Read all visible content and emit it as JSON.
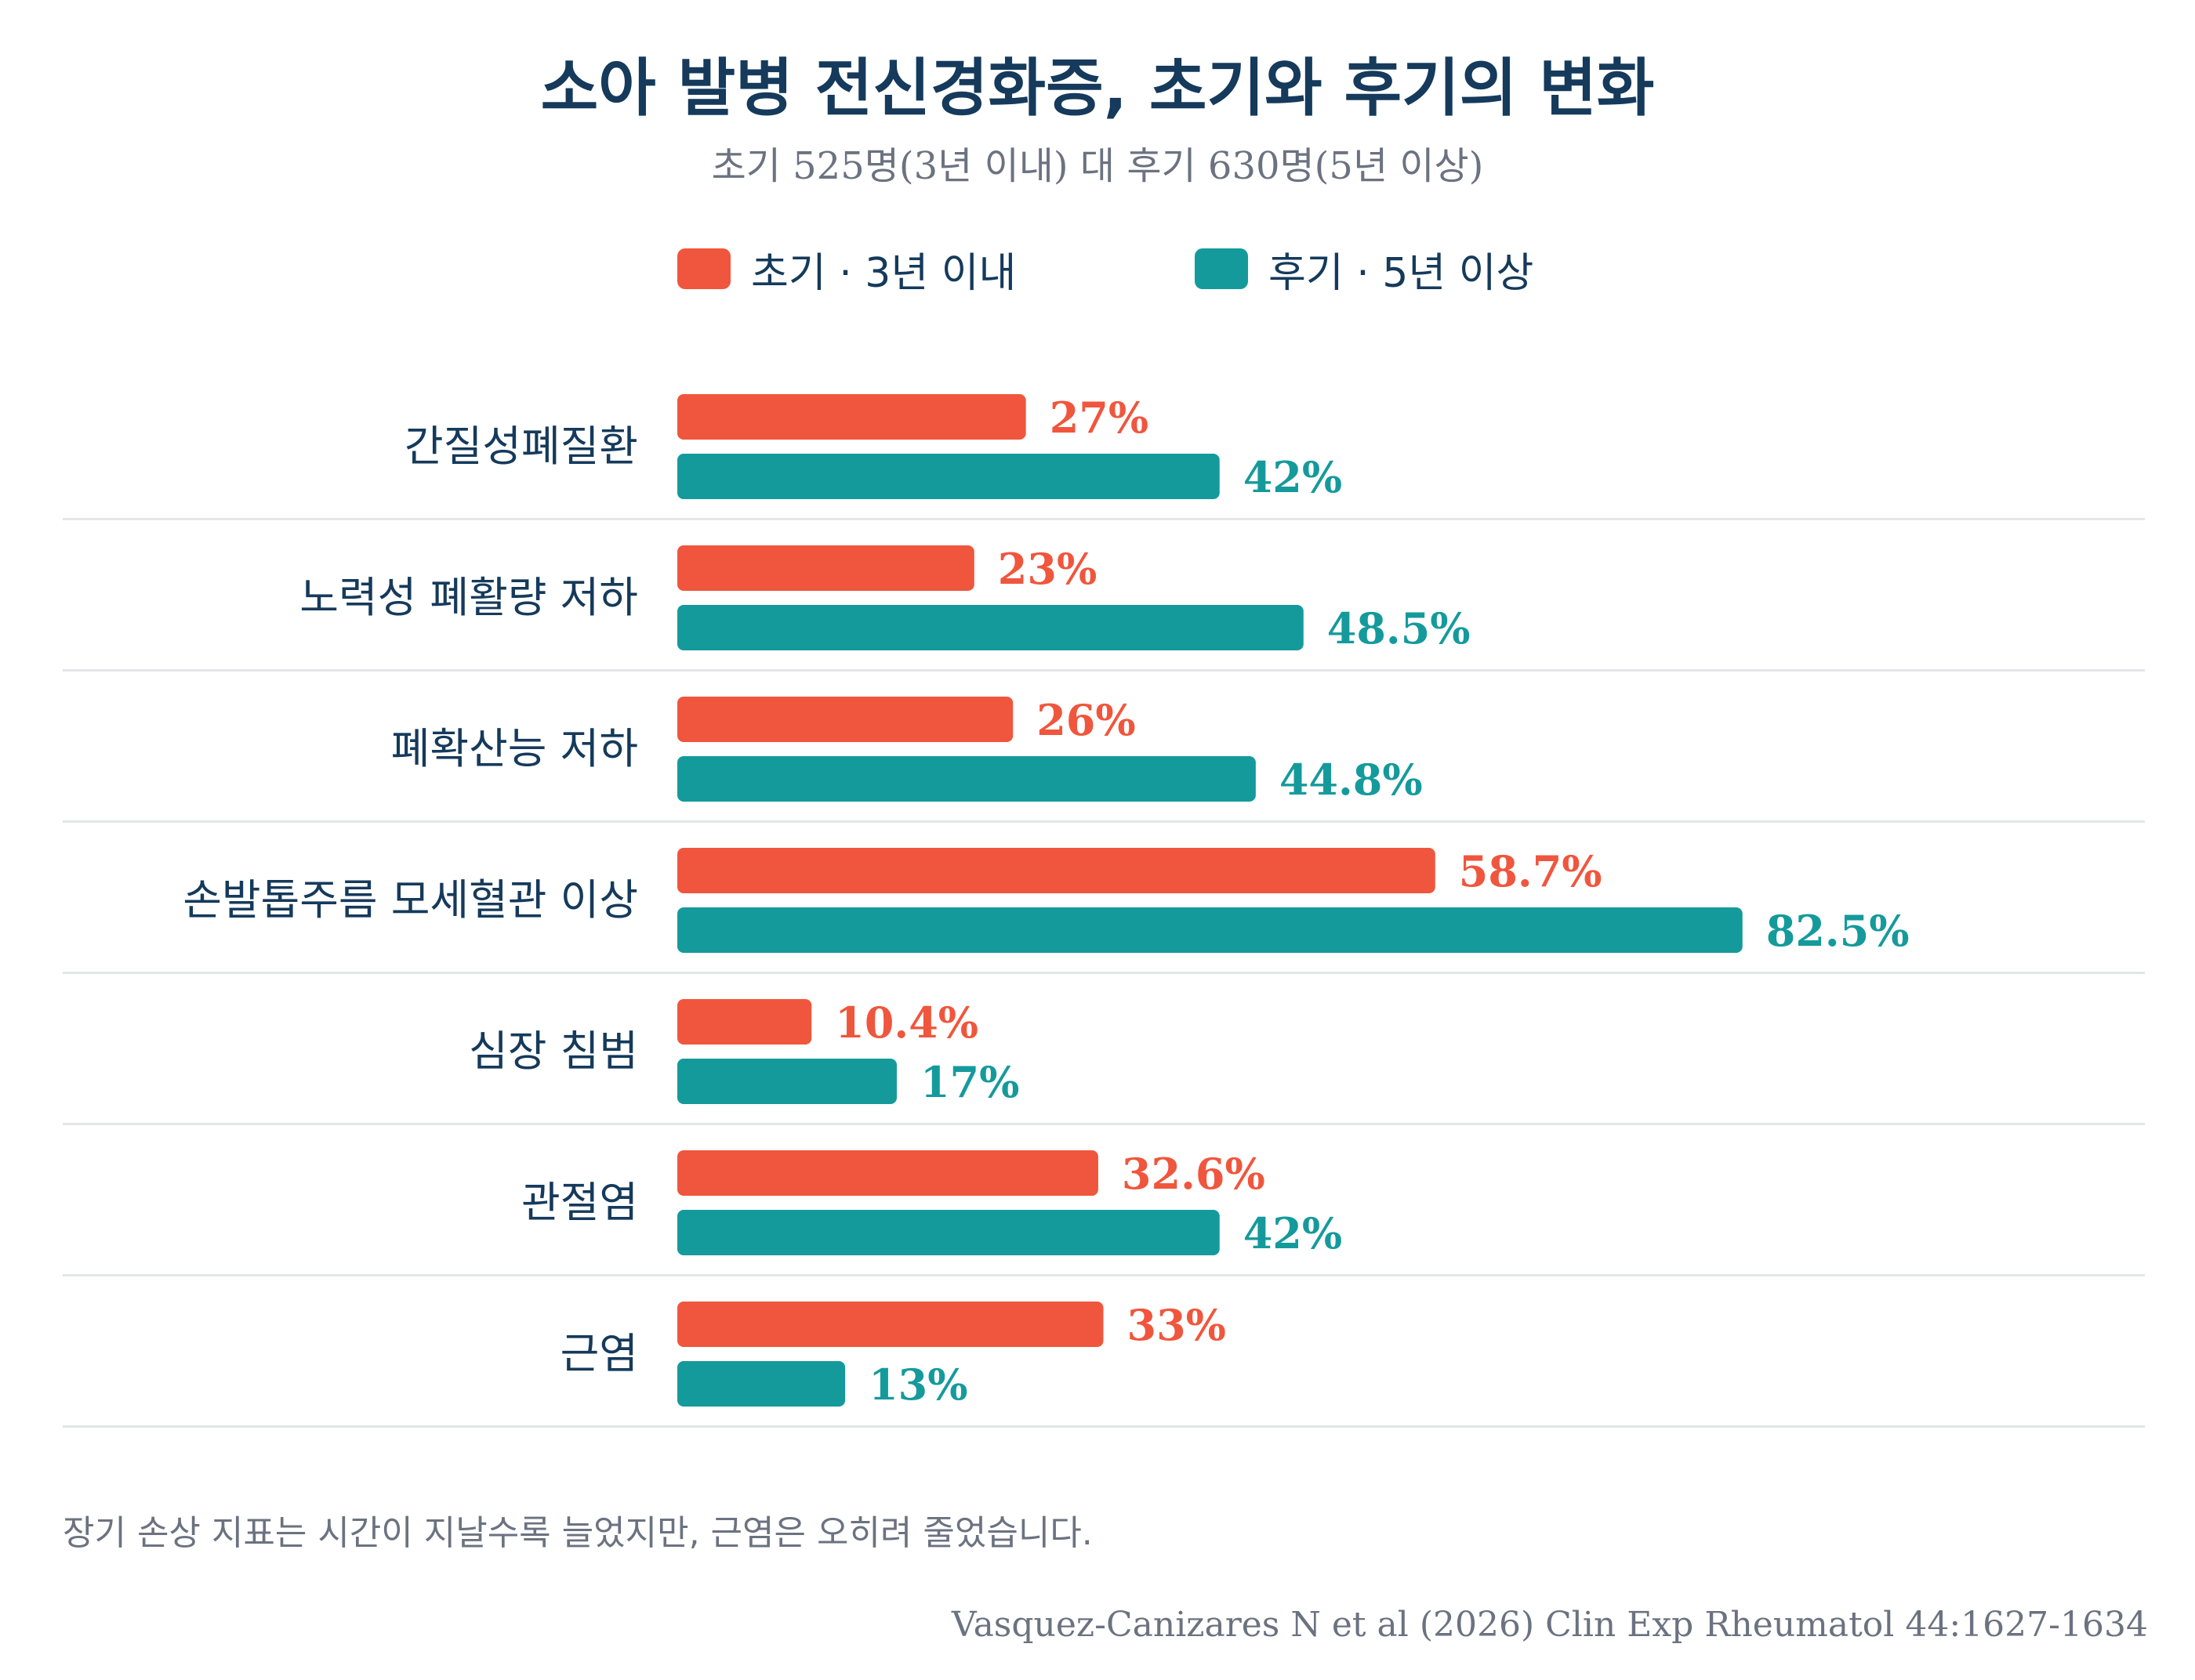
{
  "chart_data": {
    "type": "bar",
    "orientation": "horizontal",
    "title": "소아 발병 전신경화증, 초기와 후기의 변화",
    "subtitle": "초기 525명(3년 이내) 대 후기 630명(5년 이상)",
    "categories": [
      "간질성폐질환",
      "노력성 폐활량 저하",
      "폐확산능 저하",
      "손발톱주름 모세혈관 이상",
      "심장 침범",
      "관절염",
      "근염"
    ],
    "series": [
      {
        "name": "초기 · 3년 이내",
        "color": "#f0563d",
        "values": [
          27,
          23,
          26,
          58.7,
          10.4,
          32.6,
          33
        ],
        "labels": [
          "27%",
          "23%",
          "26%",
          "58.7%",
          "10.4%",
          "32.6%",
          "33%"
        ]
      },
      {
        "name": "후기 · 5년 이상",
        "color": "#159a9c",
        "values": [
          42,
          48.5,
          44.8,
          82.5,
          17,
          42,
          13
        ],
        "labels": [
          "42%",
          "48.5%",
          "44.8%",
          "82.5%",
          "17%",
          "42%",
          "13%"
        ]
      }
    ],
    "xlim": [
      0,
      100
    ],
    "legend": "top",
    "grid": false
  },
  "legend": {
    "early_label": "초기 · 3년 이내",
    "late_label": "후기 · 5년 이상",
    "early_color": "#f0563d",
    "late_color": "#159a9c"
  },
  "footnote": "장기 손상 지표는 시간이 지날수록 늘었지만, 근염은 오히려 줄었습니다.",
  "source": "Vasquez-Canizares N et al (2026) Clin Exp Rheumatol 44:1627-1634"
}
